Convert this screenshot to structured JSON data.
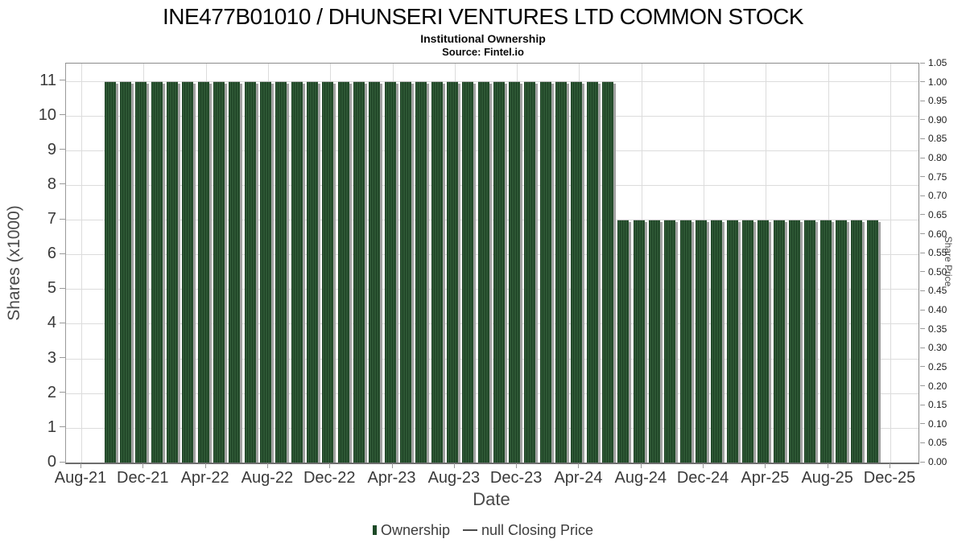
{
  "header": {
    "title": "INE477B01010 / DHUNSERI VENTURES LTD COMMON STOCK",
    "subtitle": "Institutional Ownership",
    "source": "Source: Fintel.io"
  },
  "axes": {
    "y_left": {
      "label": "Shares (x1000)",
      "ticks": [
        0,
        1,
        2,
        3,
        4,
        5,
        6,
        7,
        8,
        9,
        10,
        11
      ]
    },
    "y_right": {
      "label": "Share Price",
      "ticks": [
        "0.00",
        "0.05",
        "0.10",
        "0.15",
        "0.20",
        "0.25",
        "0.30",
        "0.35",
        "0.40",
        "0.45",
        "0.50",
        "0.55",
        "0.60",
        "0.65",
        "0.70",
        "0.75",
        "0.80",
        "0.85",
        "0.90",
        "0.95",
        "1.00",
        "1.05"
      ]
    },
    "x": {
      "label": "Date",
      "ticks": [
        "Aug-21",
        "Dec-21",
        "Apr-22",
        "Aug-22",
        "Dec-22",
        "Apr-23",
        "Aug-23",
        "Dec-23",
        "Apr-24",
        "Aug-24",
        "Dec-24",
        "Apr-25",
        "Aug-25",
        "Dec-25"
      ]
    }
  },
  "legend": {
    "ownership_label": "Ownership",
    "price_label": "null Closing Price"
  },
  "colors": {
    "bar_green": "#2d5734",
    "bar_shadow": "#a2a2a2",
    "grid": "#dcdcdc",
    "price_line": "#4a4a4a"
  },
  "chart_data": {
    "type": "bar",
    "title": "INE477B01010 / DHUNSERI VENTURES LTD COMMON STOCK",
    "subtitle": "Institutional Ownership",
    "source": "Source: Fintel.io",
    "xlabel": "Date",
    "ylabel": "Shares (x1000)",
    "ylabel_right": "Share Price",
    "ylim_left": [
      0,
      11.5
    ],
    "ylim_right": [
      0,
      1.05
    ],
    "grid": true,
    "legend_position": "bottom",
    "x_tick_labels": [
      "Aug-21",
      "Dec-21",
      "Apr-22",
      "Aug-22",
      "Dec-22",
      "Apr-23",
      "Aug-23",
      "Dec-23",
      "Apr-24",
      "Aug-24",
      "Dec-24",
      "Apr-25",
      "Aug-25",
      "Dec-25"
    ],
    "categories": [
      "Oct-21",
      "Nov-21",
      "Dec-21",
      "Jan-22",
      "Feb-22",
      "Mar-22",
      "Apr-22",
      "May-22",
      "Jun-22",
      "Jul-22",
      "Aug-22",
      "Sep-22",
      "Oct-22",
      "Nov-22",
      "Dec-22",
      "Jan-23",
      "Feb-23",
      "Mar-23",
      "Apr-23",
      "May-23",
      "Jun-23",
      "Jul-23",
      "Aug-23",
      "Sep-23",
      "Oct-23",
      "Nov-23",
      "Dec-23",
      "Jan-24",
      "Feb-24",
      "Mar-24",
      "Apr-24",
      "May-24",
      "Jun-24",
      "Jul-24",
      "Aug-24",
      "Sep-24",
      "Oct-24",
      "Nov-24",
      "Dec-24",
      "Jan-25",
      "Feb-25",
      "Mar-25",
      "Apr-25",
      "May-25",
      "Jun-25",
      "Jul-25",
      "Aug-25",
      "Sep-25",
      "Oct-25",
      "Nov-25"
    ],
    "series": [
      {
        "name": "Ownership",
        "type": "bar",
        "values": [
          11,
          11,
          11,
          11,
          11,
          11,
          11,
          11,
          11,
          11,
          11,
          11,
          11,
          11,
          11,
          11,
          11,
          11,
          11,
          11,
          11,
          11,
          11,
          11,
          11,
          11,
          11,
          11,
          11,
          11,
          11,
          11,
          11,
          7,
          7,
          7,
          7,
          7,
          7,
          7,
          7,
          7,
          7,
          7,
          7,
          7,
          7,
          7,
          7,
          7
        ]
      },
      {
        "name": "null Closing Price",
        "type": "line",
        "values": []
      }
    ]
  }
}
